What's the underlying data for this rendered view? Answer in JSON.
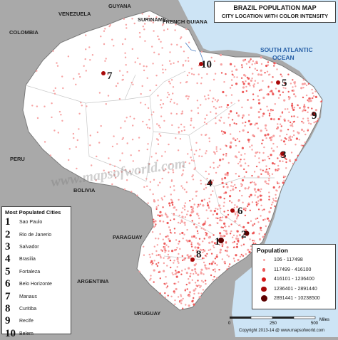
{
  "title": {
    "line1": "BRAZIL POPULATION MAP",
    "line2": "CITY LOCATION WITH COLOR INTENSITY"
  },
  "countries": [
    "VENEZUELA",
    "GUYANA",
    "SURINAME",
    "FRENCH GUIANA",
    "COLOMBIA",
    "PERU",
    "BOLIVIA",
    "PARAGUAY",
    "ARGENTINA",
    "URUGUAY"
  ],
  "ocean": {
    "line1": "SOUTH ATLANTIC",
    "line2": "OCEAN"
  },
  "watermark": "www.mapsofworld.com",
  "most_populated": {
    "header": "Most Populated Cities",
    "cities": [
      {
        "rank": "1",
        "name": "Sao Paulo"
      },
      {
        "rank": "2",
        "name": "Rio de Janerio"
      },
      {
        "rank": "3",
        "name": "Salvador"
      },
      {
        "rank": "4",
        "name": "Brasilia"
      },
      {
        "rank": "5",
        "name": "Fortaleza"
      },
      {
        "rank": "6",
        "name": "Belo Horizonte"
      },
      {
        "rank": "7",
        "name": "Manaus"
      },
      {
        "rank": "8",
        "name": "Curitiba"
      },
      {
        "rank": "9",
        "name": "Recife"
      },
      {
        "rank": "10",
        "name": "Belem"
      }
    ]
  },
  "legend": {
    "header": "Population",
    "items": [
      {
        "label": "106 - 117498",
        "color": "#f7a2a2"
      },
      {
        "label": "117499 - 416100",
        "color": "#ee5b5b"
      },
      {
        "label": "416101 - 1236400",
        "color": "#d81818"
      },
      {
        "label": "1236401 - 2891440",
        "color": "#a80808"
      },
      {
        "label": "2891441 - 10238500",
        "color": "#5c0000"
      }
    ]
  },
  "scale": {
    "zero": "0",
    "mid": "250",
    "max": "500",
    "unit": "Miles"
  },
  "copyright": "Copyright 2013-14 @ www.mapsofworld.com",
  "colors": {
    "land": "#ffffff",
    "neighbor": "#a9a9a9",
    "ocean": "#cde4f5",
    "dot_light": "#f7a2a2",
    "dot_mid": "#ee5b5b"
  }
}
